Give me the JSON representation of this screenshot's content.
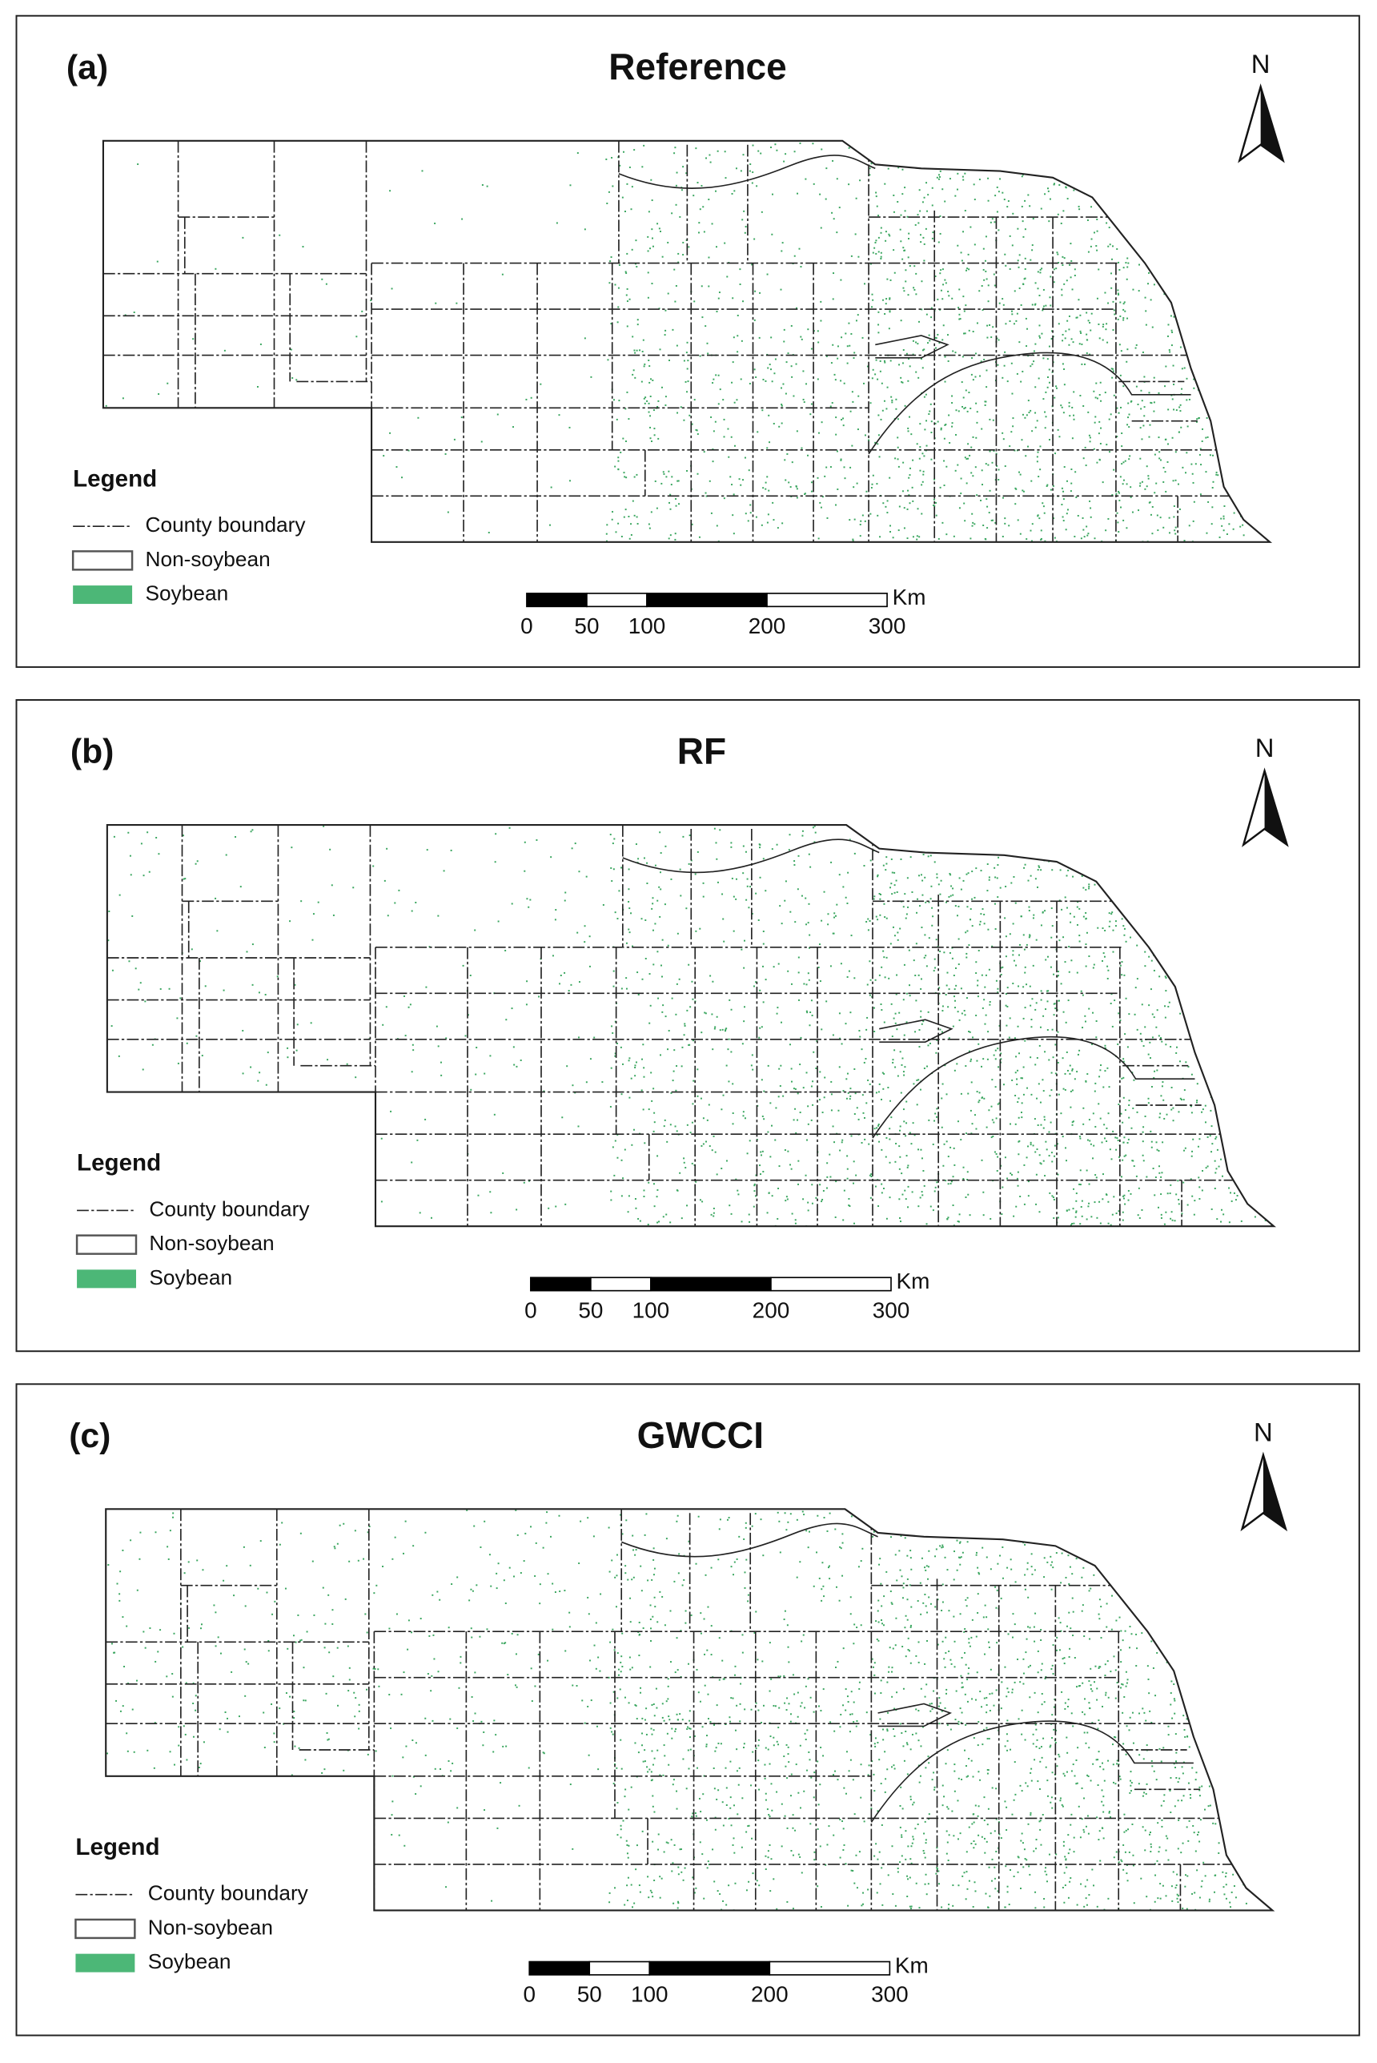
{
  "panels": [
    {
      "label": "(a)",
      "title": "Reference",
      "north": "N",
      "legend": {
        "title": "Legend",
        "items": [
          "County boundary",
          "Non-soybean",
          "Soybean"
        ]
      },
      "scale_bar": {
        "ticks": [
          0,
          50,
          100,
          200,
          300
        ],
        "unit": "Km"
      }
    },
    {
      "label": "(b)",
      "title": "RF",
      "north": "N",
      "legend": {
        "title": "Legend",
        "items": [
          "County boundary",
          "Non-soybean",
          "Soybean"
        ]
      },
      "scale_bar": {
        "ticks": [
          0,
          50,
          100,
          200,
          300
        ],
        "unit": "Km"
      }
    },
    {
      "label": "(c)",
      "title": "GWCCI",
      "north": "N",
      "legend": {
        "title": "Legend",
        "items": [
          "County boundary",
          "Non-soybean",
          "Soybean"
        ]
      },
      "scale_bar": {
        "ticks": [
          0,
          50,
          100,
          200,
          300
        ],
        "unit": "Km"
      }
    }
  ]
}
